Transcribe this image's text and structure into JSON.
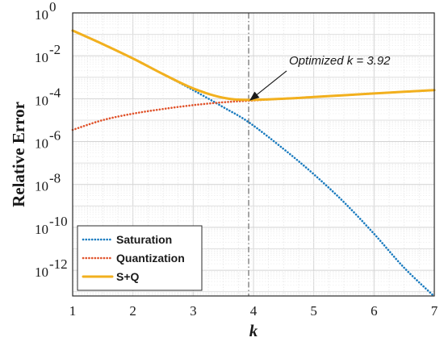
{
  "chart_data": {
    "type": "line",
    "xlabel": "k",
    "ylabel": "Relative Error",
    "xlim": [
      1,
      7
    ],
    "ylim_log10": [
      -13.2,
      0
    ],
    "yscale": "log",
    "grid": true,
    "x_ticks": [
      "1",
      "2",
      "3",
      "4",
      "5",
      "6",
      "7"
    ],
    "y_ticks": [
      {
        "base": "10",
        "exp": "0"
      },
      {
        "base": "10",
        "exp": "-2"
      },
      {
        "base": "10",
        "exp": "-4"
      },
      {
        "base": "10",
        "exp": "-6"
      },
      {
        "base": "10",
        "exp": "-8"
      },
      {
        "base": "10",
        "exp": "-10"
      },
      {
        "base": "10",
        "exp": "-12"
      }
    ],
    "legend_position": "bottom-left",
    "annotation": {
      "text": "Optimized k = 3.92",
      "text_parts": [
        "Optimized ",
        "k",
        " = 3.92"
      ],
      "x": 3.92,
      "y": 8e-05
    },
    "colors": {
      "saturation": "#1a7bbf",
      "quantization": "#e0522a",
      "sq": "#f2b01e",
      "vline": "#6b6b6b"
    },
    "series": [
      {
        "name": "Saturation",
        "style": "dotted",
        "x": [
          1.0,
          1.5,
          2.0,
          2.5,
          3.0,
          3.5,
          3.92,
          4.5,
          5.0,
          5.5,
          6.0,
          6.5,
          7.0
        ],
        "y": [
          0.15,
          0.035,
          0.0075,
          0.0014,
          0.00025,
          4e-05,
          8e-06,
          4.5e-07,
          3e-08,
          1.5e-09,
          5e-11,
          1.3e-12,
          6e-14
        ]
      },
      {
        "name": "Quantization",
        "style": "dotted",
        "x": [
          1.0,
          1.5,
          2.0,
          2.5,
          3.0,
          3.5,
          3.92,
          4.5,
          5.0,
          5.5,
          6.0,
          6.5,
          7.0
        ],
        "y": [
          3.5e-06,
          1e-05,
          2e-05,
          3.3e-05,
          5e-05,
          6.8e-05,
          8e-05,
          0.0001,
          0.00012,
          0.000145,
          0.000175,
          0.00021,
          0.00025
        ]
      },
      {
        "name": "S+Q",
        "style": "solid",
        "x": [
          1.0,
          1.5,
          2.0,
          2.5,
          3.0,
          3.5,
          3.92,
          4.5,
          5.0,
          5.5,
          6.0,
          6.5,
          7.0
        ],
        "y": [
          0.15,
          0.035,
          0.0075,
          0.0014,
          0.0003,
          0.00011,
          8.8e-05,
          0.0001,
          0.00012,
          0.000145,
          0.000175,
          0.00021,
          0.00025
        ]
      }
    ]
  }
}
